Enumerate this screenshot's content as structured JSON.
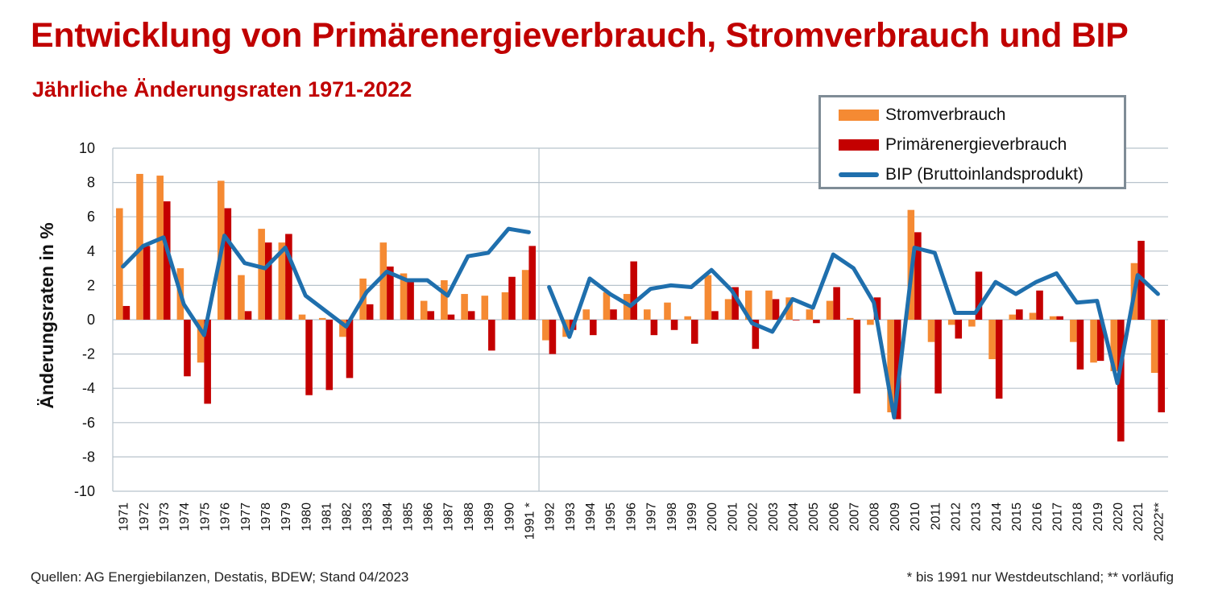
{
  "header": {
    "title": "Entwicklung von Primärenergieverbrauch, Stromverbrauch und BIP",
    "subtitle": "Jährliche Änderungsraten 1971-2022"
  },
  "footer": {
    "source": "Quellen: AG Energiebilanzen, Destatis, BDEW; Stand 04/2023",
    "note": "* bis 1991 nur Westdeutschland; ** vorläufig"
  },
  "legend": {
    "items": [
      {
        "label": "Stromverbrauch",
        "color": "#f58a33",
        "kind": "bar"
      },
      {
        "label": "Primärenergieverbrauch",
        "color": "#c40000",
        "kind": "bar"
      },
      {
        "label": "BIP (Bruttoinlandsprodukt)",
        "color": "#1f6fad",
        "kind": "line"
      }
    ],
    "placement": "top-right"
  },
  "chart_data": {
    "type": "bar",
    "ylabel": "Änderungsraten in %",
    "ylim": [
      -10,
      10
    ],
    "yticks": [
      10,
      8,
      6,
      4,
      2,
      0,
      -2,
      -4,
      -6,
      -8,
      -10
    ],
    "grid": true,
    "break_after_category": "1991 *",
    "categories": [
      "1971",
      "1972",
      "1973",
      "1974",
      "1975",
      "1976",
      "1977",
      "1978",
      "1979",
      "1980",
      "1981",
      "1982",
      "1983",
      "1984",
      "1985",
      "1986",
      "1987",
      "1988",
      "1989",
      "1990",
      "1991 *",
      "1992",
      "1993",
      "1994",
      "1995",
      "1996",
      "1997",
      "1998",
      "1999",
      "2000",
      "2001",
      "2002",
      "2003",
      "2004",
      "2005",
      "2006",
      "2007",
      "2008",
      "2009",
      "2010",
      "2011",
      "2012",
      "2013",
      "2014",
      "2015",
      "2016",
      "2017",
      "2018",
      "2019",
      "2020",
      "2021",
      "2022**"
    ],
    "series": [
      {
        "name": "Stromverbrauch",
        "type": "bar",
        "color": "#f58a33",
        "values": [
          6.5,
          8.5,
          8.4,
          3.0,
          -2.5,
          8.1,
          2.6,
          5.3,
          4.5,
          0.3,
          0.1,
          -1.0,
          2.4,
          4.5,
          2.7,
          1.1,
          2.3,
          1.5,
          1.4,
          1.6,
          2.9,
          -1.2,
          -1.0,
          0.6,
          1.6,
          1.5,
          0.6,
          1.0,
          0.2,
          2.6,
          1.2,
          1.7,
          1.7,
          1.3,
          0.6,
          1.1,
          0.1,
          -0.3,
          -5.4,
          6.4,
          -1.3,
          -0.3,
          -0.4,
          -2.3,
          0.3,
          0.4,
          0.2,
          -1.3,
          -2.5,
          -3.0,
          3.3,
          -3.1
        ]
      },
      {
        "name": "Primärenergieverbrauch",
        "type": "bar",
        "color": "#c40000",
        "values": [
          0.8,
          4.3,
          6.9,
          -3.3,
          -4.9,
          6.5,
          0.5,
          4.5,
          5.0,
          -4.4,
          -4.1,
          -3.4,
          0.9,
          3.1,
          2.3,
          0.5,
          0.3,
          0.5,
          -1.8,
          2.5,
          4.3,
          -2.0,
          -0.6,
          -0.9,
          0.6,
          3.4,
          -0.9,
          -0.6,
          -1.4,
          0.5,
          1.9,
          -1.7,
          1.2,
          0.0,
          -0.2,
          1.9,
          -4.3,
          1.3,
          -5.8,
          5.1,
          -4.3,
          -1.1,
          2.8,
          -4.6,
          0.6,
          1.7,
          0.2,
          -2.9,
          -2.4,
          -7.1,
          4.6,
          -5.4
        ]
      },
      {
        "name": "BIP (Bruttoinlandsprodukt)",
        "type": "line",
        "color": "#1f6fad",
        "values": [
          3.1,
          4.3,
          4.8,
          0.9,
          -0.9,
          4.9,
          3.3,
          3.0,
          4.2,
          1.4,
          0.5,
          -0.4,
          1.6,
          2.8,
          2.3,
          2.3,
          1.4,
          3.7,
          3.9,
          5.3,
          5.1,
          1.9,
          -1.0,
          2.4,
          1.5,
          0.8,
          1.8,
          2.0,
          1.9,
          2.9,
          1.7,
          -0.2,
          -0.7,
          1.2,
          0.7,
          3.8,
          3.0,
          1.0,
          -5.7,
          4.2,
          3.9,
          0.4,
          0.4,
          2.2,
          1.5,
          2.2,
          2.7,
          1.0,
          1.1,
          -3.7,
          2.6,
          1.5
        ]
      }
    ]
  }
}
